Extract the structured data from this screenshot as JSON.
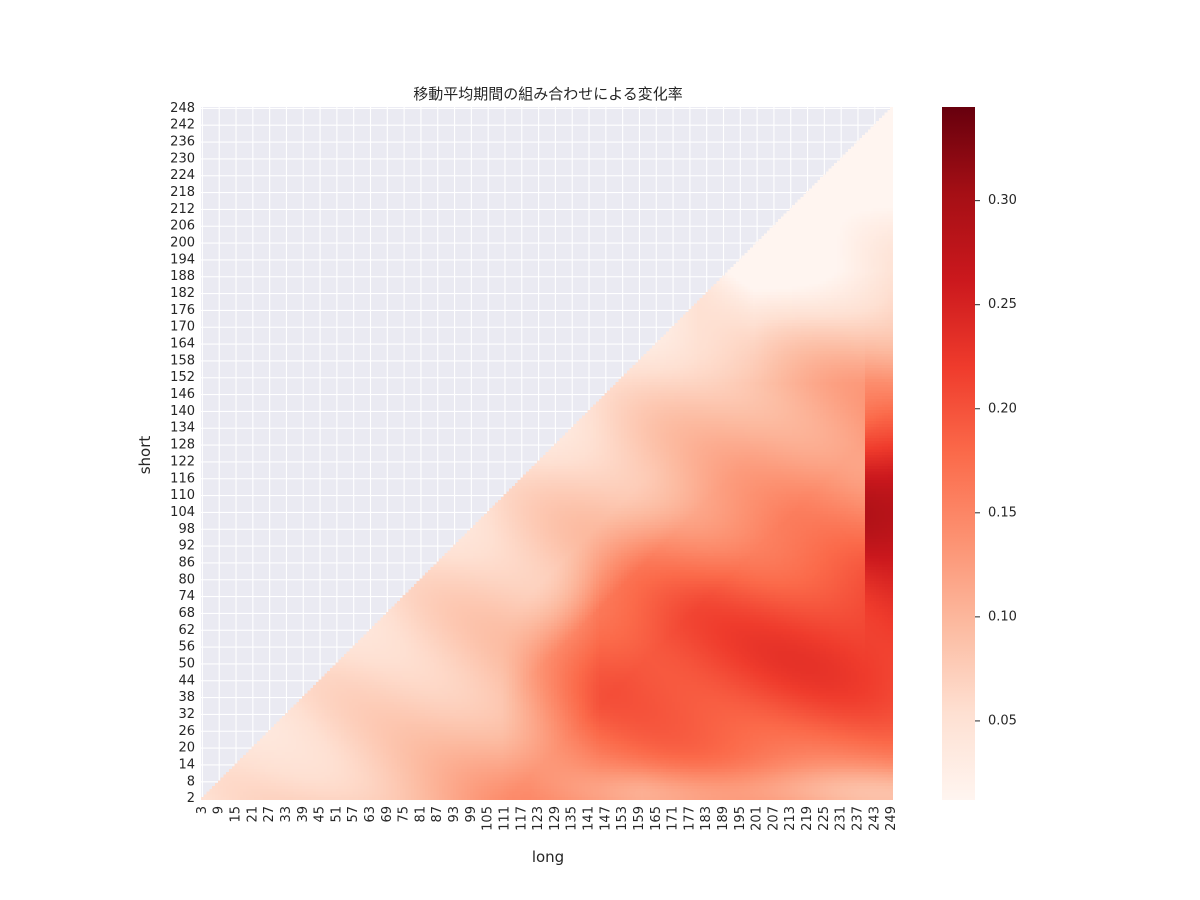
{
  "chart_data": {
    "type": "heatmap",
    "title": "移動平均期間の組み合わせによる変化率",
    "xlabel": "long",
    "ylabel": "short",
    "x_ticks": [
      3,
      9,
      15,
      21,
      27,
      33,
      39,
      45,
      51,
      57,
      63,
      69,
      75,
      81,
      87,
      93,
      99,
      105,
      111,
      117,
      123,
      129,
      135,
      141,
      147,
      153,
      159,
      165,
      171,
      177,
      183,
      189,
      195,
      201,
      207,
      213,
      219,
      225,
      231,
      237,
      243,
      249
    ],
    "y_ticks": [
      248,
      242,
      236,
      230,
      224,
      218,
      212,
      206,
      200,
      194,
      188,
      182,
      176,
      170,
      164,
      158,
      152,
      146,
      140,
      134,
      128,
      122,
      116,
      110,
      104,
      98,
      92,
      86,
      80,
      74,
      68,
      62,
      56,
      50,
      44,
      38,
      32,
      26,
      20,
      14,
      8,
      2
    ],
    "x_range": [
      3,
      249
    ],
    "y_range": [
      2,
      248
    ],
    "mask": "cells where short >= long are empty",
    "colormap": "Reds",
    "colorbar_ticks": [
      0.05,
      0.1,
      0.15,
      0.2,
      0.25,
      0.3
    ],
    "colorbar_range": [
      0.012,
      0.345
    ],
    "colorbar_tick_labels": [
      "0.05",
      "0.10",
      "0.15",
      "0.20",
      "0.25",
      "0.30"
    ],
    "regions_approx": [
      {
        "area": "near diagonal / small short",
        "value": 0.06
      },
      {
        "area": "short 30-90, long 120-240",
        "value": 0.22
      },
      {
        "area": "short 80-140, long 240-249",
        "value": 0.32
      },
      {
        "area": "short 150-248, long 200-249",
        "value": 0.11
      },
      {
        "area": "short 2-10, long 130-249",
        "value": 0.16
      }
    ],
    "grid": true
  }
}
